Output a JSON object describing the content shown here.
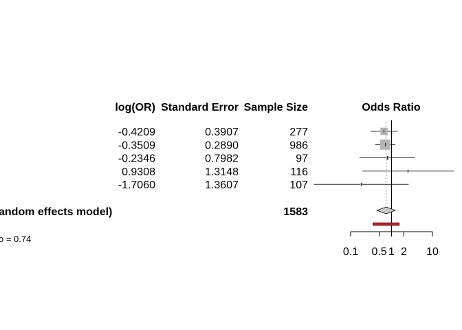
{
  "chart_data": {
    "type": "forest",
    "title": "Odds Ratio",
    "columns": {
      "logor_header": "log(OR)",
      "se_header": "Standard Error",
      "n_header": "Sample Size"
    },
    "x_scale": "log",
    "x_ticks": [
      0.1,
      0.5,
      1,
      2,
      10
    ],
    "x_tick_labels": [
      "0.1",
      "0.5",
      "1",
      "2",
      "10"
    ],
    "xlim": [
      0.1,
      10
    ],
    "reference_line": 1,
    "dotted_line": 0.74,
    "studies": [
      {
        "logor": "-0.4209",
        "se": "0.3907",
        "n": "277",
        "or": 0.656,
        "lower": 0.305,
        "upper": 1.411,
        "weight": 0.28
      },
      {
        "logor": "-0.3509",
        "se": "0.2890",
        "n": "986",
        "or": 0.704,
        "lower": 0.4,
        "upper": 1.24,
        "weight": 0.55
      },
      {
        "logor": "-0.2346",
        "se": "0.7982",
        "n": "97",
        "or": 0.791,
        "lower": 0.165,
        "upper": 3.779,
        "weight": 0.07
      },
      {
        "logor": "0.9308",
        "se": "1.3148",
        "n": "116",
        "or": 2.537,
        "lower": 0.193,
        "upper": 33.37,
        "weight": 0.03
      },
      {
        "logor": "-1.7060",
        "se": "1.3607",
        "n": "107",
        "or": 0.182,
        "lower": 0.0126,
        "upper": 2.62,
        "weight": 0.03
      }
    ],
    "pooled": {
      "label": "andom effects model)",
      "n": "1583",
      "or": 0.74,
      "lower": 0.44,
      "upper": 1.24,
      "prediction_lower": 0.35,
      "prediction_upper": 1.55
    },
    "footnote": "o = 0.74",
    "colors": {
      "square": "#b3b3b3",
      "diamond": "#c8c8c8",
      "prediction": "#b22222",
      "line": "#000000"
    }
  }
}
